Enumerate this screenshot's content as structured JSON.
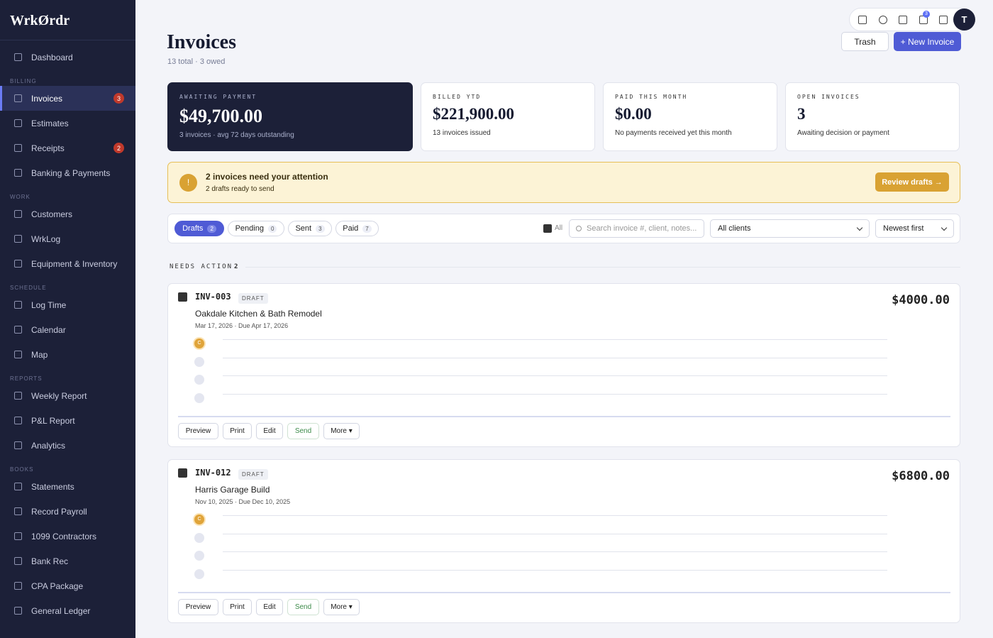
{
  "sidebar": {
    "logo": "WrkØrdr",
    "top_item": "Dashboard",
    "sections": [
      {
        "label": "BILLING",
        "items": [
          {
            "label": "Invoices",
            "badge": 3,
            "active": true
          },
          {
            "label": "Estimates"
          },
          {
            "label": "Receipts",
            "badge": 2
          },
          {
            "label": "Banking & Payments"
          }
        ]
      },
      {
        "label": "WORK",
        "items": [
          {
            "label": "Customers"
          },
          {
            "label": "WrkLog"
          },
          {
            "label": "Equipment & Inventory"
          }
        ]
      },
      {
        "label": "SCHEDULE",
        "items": [
          {
            "label": "Log Time"
          },
          {
            "label": "Calendar"
          },
          {
            "label": "Map"
          }
        ]
      },
      {
        "label": "REPORTS",
        "items": [
          {
            "label": "Weekly Report"
          },
          {
            "label": "P&L Report"
          },
          {
            "label": "Analytics"
          }
        ]
      },
      {
        "label": "BOOKS",
        "items": [
          {
            "label": "Statements"
          },
          {
            "label": "Record Payroll"
          },
          {
            "label": "1099 Contractors"
          },
          {
            "label": "Bank Rec"
          },
          {
            "label": "CPA Package"
          },
          {
            "label": "General Ledger"
          }
        ]
      }
    ]
  },
  "topbar": {
    "badge": 3,
    "avatar": "T"
  },
  "header": {
    "title": "Invoices",
    "subtitle": "13 total · 3 owed",
    "trash": "Trash",
    "new": "+ New Invoice"
  },
  "stats": [
    {
      "label": "AWAITING PAYMENT",
      "value": "$49,700.00",
      "note": "3 invoices · avg 72 days outstanding"
    },
    {
      "label": "BILLED YTD",
      "value": "$221,900.00",
      "note": "13 invoices issued"
    },
    {
      "label": "PAID THIS MONTH",
      "value": "$0.00",
      "note": "No payments received yet this month"
    },
    {
      "label": "OPEN INVOICES",
      "value": "3",
      "note": "Awaiting decision or payment"
    }
  ],
  "alert": {
    "icon": "!",
    "title": "2 invoices need your attention",
    "text": "2 drafts ready to send",
    "button": "Review drafts →"
  },
  "filters": {
    "tabs": [
      {
        "label": "Drafts",
        "count": 2
      },
      {
        "label": "Pending",
        "count": 0
      },
      {
        "label": "Sent",
        "count": 3
      },
      {
        "label": "Paid",
        "count": 7
      }
    ],
    "select_all": "All",
    "search_placeholder": "Search invoice #, client, notes...",
    "client_filter": "All clients",
    "sort": "Newest first"
  },
  "section": {
    "label": "NEEDS ACTION",
    "count": 2
  },
  "invoices": [
    {
      "number": "INV-003",
      "status": "DRAFT",
      "title": "Oakdale Kitchen & Bath Remodel",
      "dates": "Mar 17, 2026 · Due Apr 17, 2026",
      "amount": "$4000.00",
      "step": "C",
      "actions": [
        "Preview",
        "Print",
        "Edit",
        "Send",
        "More ▾"
      ]
    },
    {
      "number": "INV-012",
      "status": "DRAFT",
      "title": "Harris Garage Build",
      "dates": "Nov 10, 2025 · Due Dec 10, 2025",
      "amount": "$6800.00",
      "step": "C",
      "actions": [
        "Preview",
        "Print",
        "Edit",
        "Send",
        "More ▾"
      ]
    }
  ]
}
